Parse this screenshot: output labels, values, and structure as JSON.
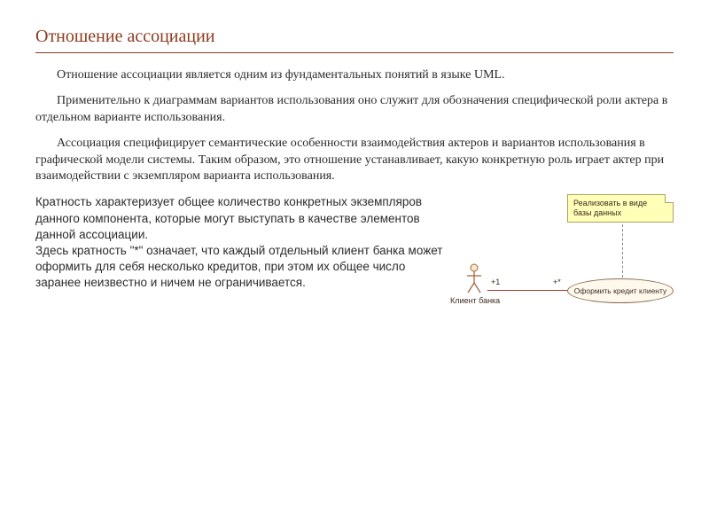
{
  "title": "Отношение ассоциации",
  "para1": "Отношение ассоциации является одним из фундаментальных понятий в языке UML.",
  "para2": "Применительно к диаграммам вариантов использования оно служит для обозначения специфической роли актера в отдельном варианте использования.",
  "para3": "Ассоциация специфицирует семантические особенности взаимодействия актеров и вариантов использования в графической модели системы. Таким образом, это отношение устанавливает, какую конкретную роль играет актер при взаимодействии с экземпляром варианта использования.",
  "bottom_text": "Кратность характеризует общее количество конкретных экземпляров данного компонента, которые могут выступать в качестве элементов данной ассоциации.\nЗдесь кратность \"*\" означает, что каждый отдельный клиент банка может оформить для себя несколько кредитов, при этом их общее число заранее неизвестно и ничем не ограничивается.",
  "diagram": {
    "note_text": "Реализовать в виде базы данных",
    "actor_label": "Клиент банка",
    "usecase_label": "Оформить кредит клиенту",
    "mult_left": "+1",
    "mult_right": "+*",
    "note_bg": "#ffffb8",
    "note_border": "#b0a060",
    "ellipse_fill": "#fff8ec",
    "ellipse_border": "#8a6a50",
    "line_color": "#a04030"
  },
  "colors": {
    "title": "#8b3a1e",
    "text": "#2b2b2b",
    "background": "#ffffff"
  }
}
